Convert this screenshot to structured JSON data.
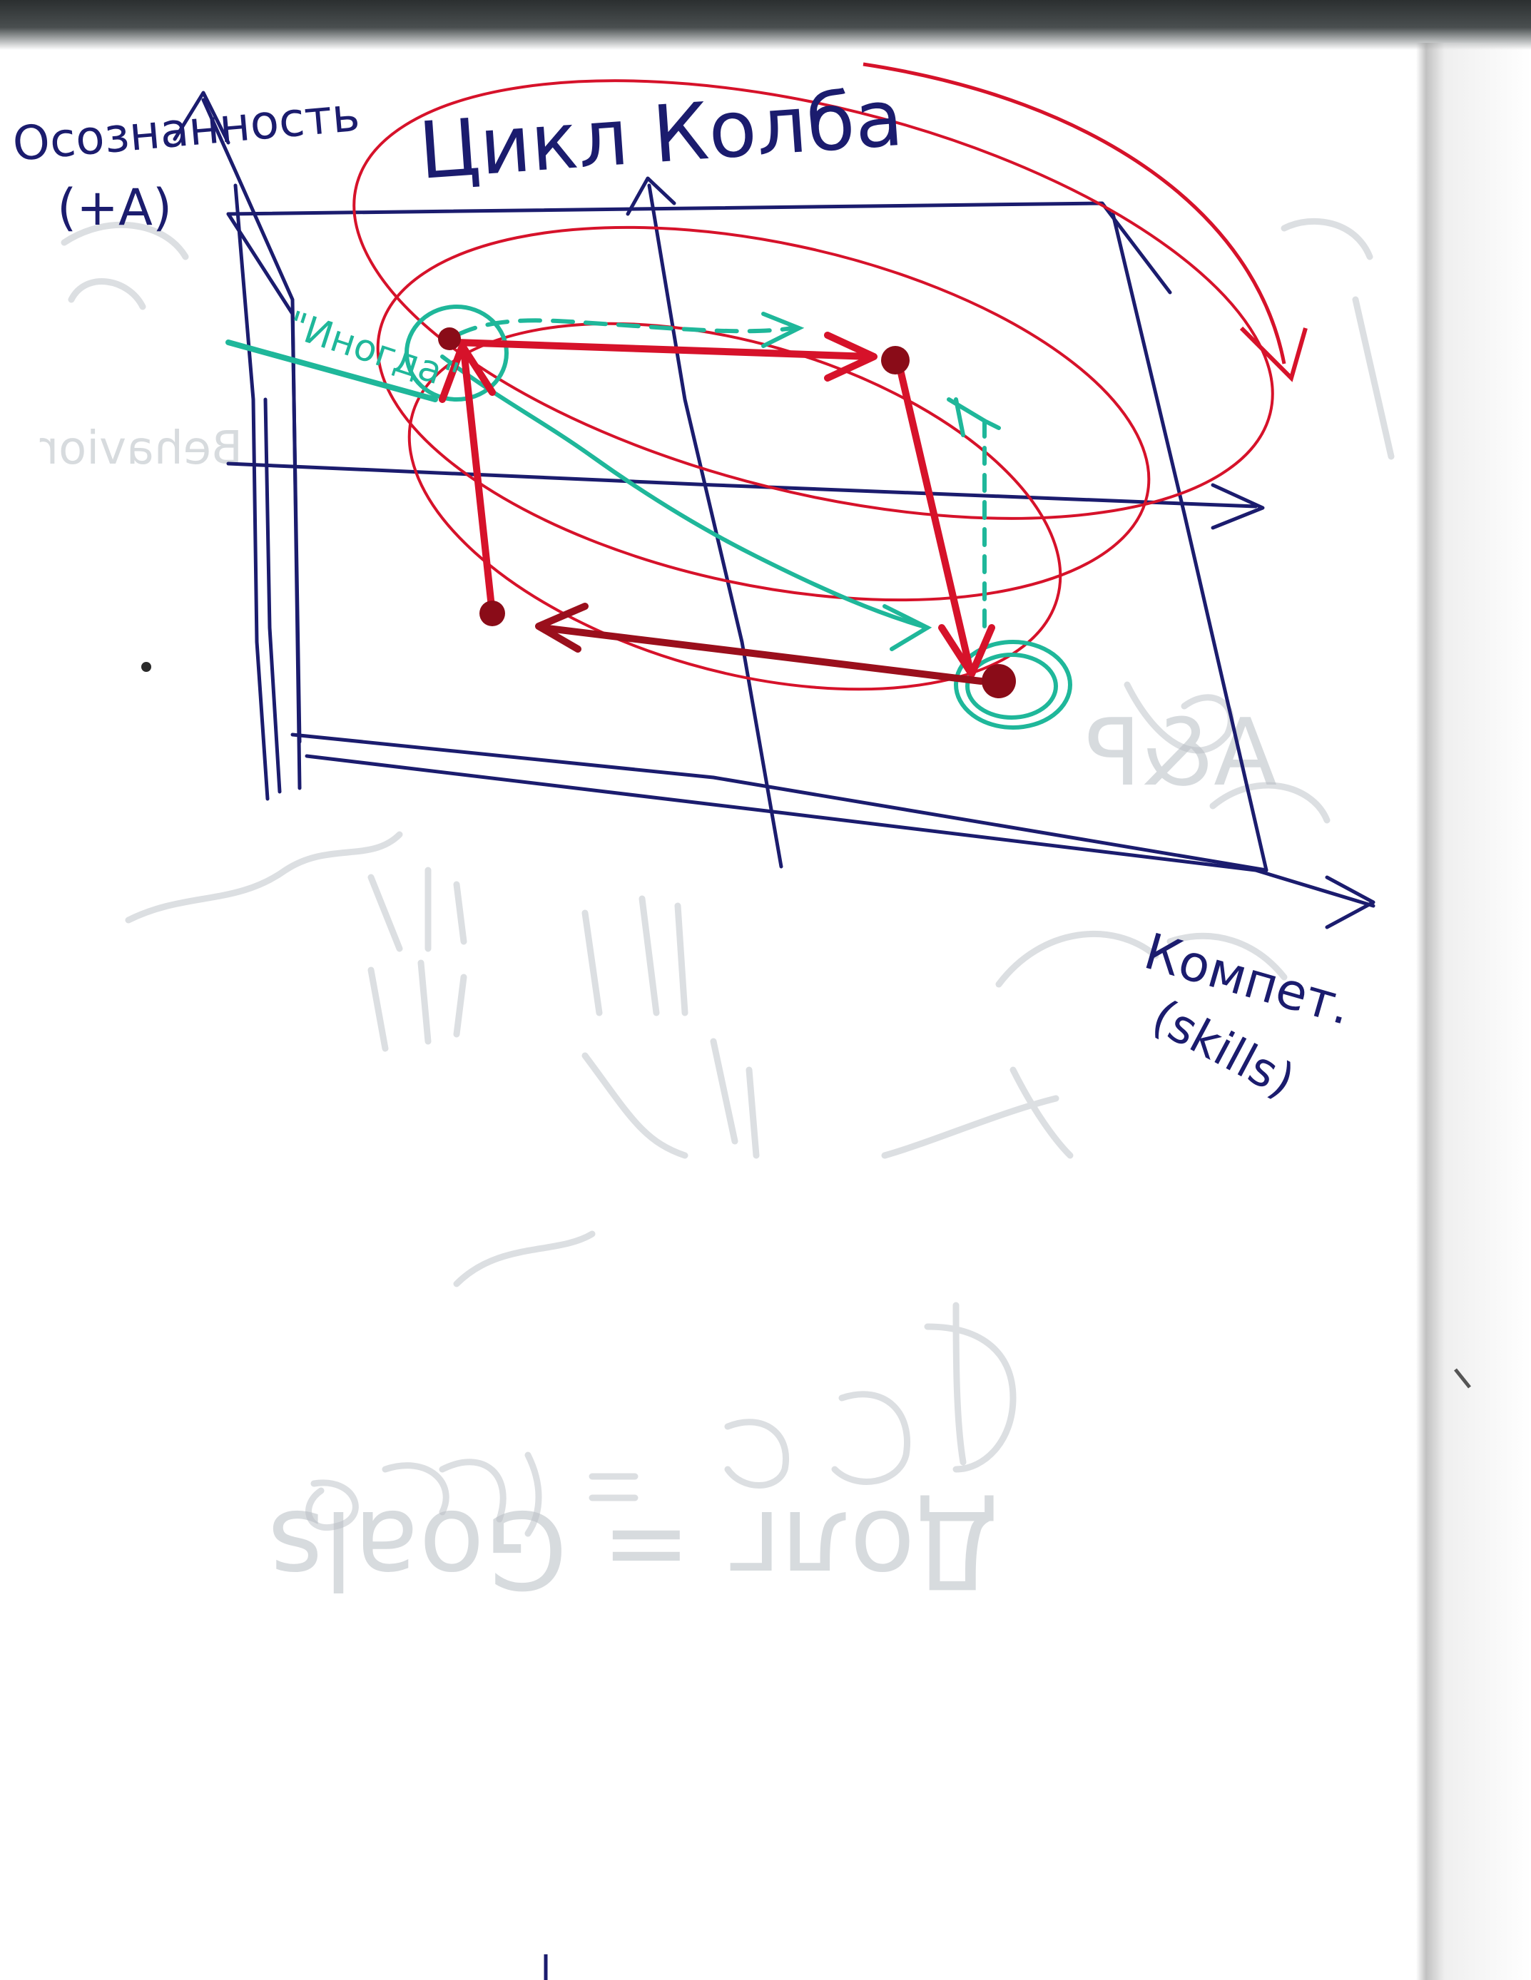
{
  "diagram": {
    "title": "Цикл Колба",
    "y_axis_label": "Осознанность",
    "y_axis_marker": "(+A)",
    "x_axis_label": "Компет.",
    "x_axis_sub": "(skills)",
    "arrow_label": "\"Иногда\"",
    "mirrored_faint_texts": [
      "Behavior",
      "Долг = Goals",
      "A&P"
    ],
    "colors": {
      "frame": "#1b1c6e",
      "cycle": "#d6122a",
      "cycle_dark": "#9a0f1c",
      "path": "#1fb79a",
      "ghost": "#b8bec4"
    }
  }
}
